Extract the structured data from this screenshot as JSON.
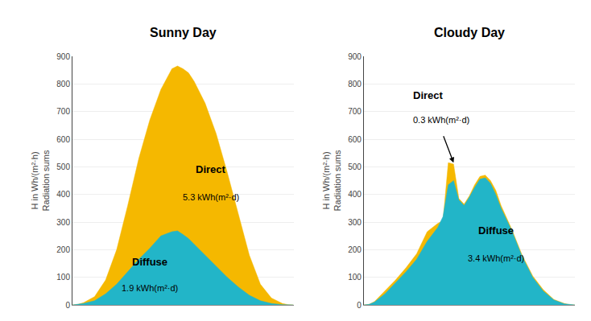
{
  "chart_data": [
    {
      "type": "area",
      "title": "Sunny Day",
      "ylabel": [
        "H in Wh/(m²·h)",
        "Radiation sums"
      ],
      "x": [
        0,
        0.5,
        1,
        2,
        3,
        4,
        5,
        6,
        7,
        8,
        9,
        9.5,
        10,
        10.5,
        11,
        12,
        13,
        14,
        15,
        16,
        17,
        18,
        19,
        19.5,
        20
      ],
      "series": [
        {
          "color": "#f5b800",
          "values": [
            0,
            2,
            8,
            30,
            90,
            200,
            360,
            530,
            670,
            780,
            855,
            865,
            855,
            840,
            810,
            730,
            620,
            480,
            330,
            180,
            75,
            25,
            5,
            1,
            0
          ]
        },
        {
          "color": "#22b5c8",
          "values": [
            0,
            2,
            5,
            15,
            40,
            75,
            120,
            165,
            205,
            250,
            265,
            268,
            255,
            240,
            220,
            180,
            140,
            100,
            65,
            35,
            15,
            5,
            1,
            0,
            0
          ]
        }
      ],
      "xlim": [
        0,
        20
      ],
      "ylim": [
        0,
        900
      ],
      "yticks": [
        0,
        100,
        200,
        300,
        400,
        500,
        600,
        700,
        800,
        900
      ],
      "grid": true,
      "tick_labels": "y",
      "annotations": [
        "Direct",
        "5.3 kWh(m²·d)",
        "Diffuse",
        "1.9 kWh(m²·d)"
      ]
    },
    {
      "type": "area",
      "title": "Cloudy Day",
      "ylabel": [
        "H in Wh/(m²·h)",
        "Radiation sums"
      ],
      "x": [
        0,
        0.5,
        1,
        2,
        3,
        4,
        5,
        6,
        7,
        7.5,
        8,
        8.5,
        9,
        9.5,
        10,
        10.5,
        11,
        11.5,
        12,
        12.5,
        13,
        14,
        15,
        16,
        17,
        18,
        19,
        19.5,
        20
      ],
      "series": [
        {
          "color": "#f5b800",
          "values": [
            0,
            2,
            12,
            50,
            90,
            135,
            185,
            265,
            295,
            305,
            515,
            510,
            385,
            365,
            395,
            435,
            465,
            470,
            450,
            415,
            360,
            275,
            180,
            105,
            55,
            20,
            5,
            1,
            0
          ]
        },
        {
          "color": "#22b5c8",
          "values": [
            0,
            2,
            10,
            40,
            80,
            120,
            165,
            230,
            280,
            320,
            435,
            450,
            380,
            360,
            390,
            425,
            455,
            460,
            440,
            400,
            350,
            270,
            175,
            100,
            50,
            18,
            4,
            1,
            0
          ]
        }
      ],
      "xlim": [
        0,
        20
      ],
      "ylim": [
        0,
        900
      ],
      "yticks": [
        0,
        100,
        200,
        300,
        400,
        500,
        600,
        700,
        800,
        900
      ],
      "grid": true,
      "tick_labels": "y",
      "annotations": [
        "Direct",
        "0.3 kWh(m²·d)",
        "Diffuse",
        "3.4 kWh(m²·d)"
      ]
    }
  ]
}
